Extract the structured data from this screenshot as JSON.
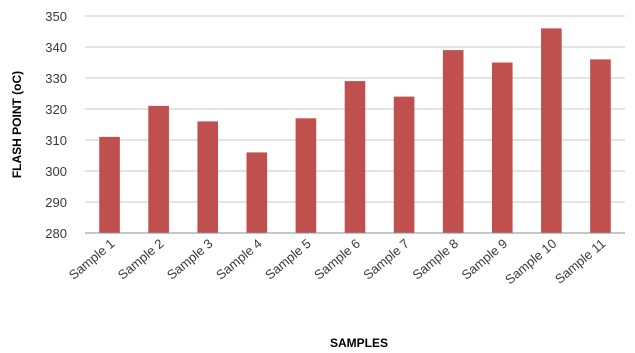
{
  "chart_data": {
    "type": "bar",
    "title": "",
    "xlabel": "SAMPLES",
    "ylabel": "FLASH POINT (oC)",
    "categories": [
      "Sample 1",
      "Sample 2",
      "Sample 3",
      "Sample 4",
      "Sample 5",
      "Sample 6",
      "Sample 7",
      "Sample 8",
      "Sample 9",
      "Sample 10",
      "Sample 11"
    ],
    "series": [
      {
        "values": [
          311,
          321,
          316,
          306,
          317,
          329,
          324,
          339,
          335,
          346,
          336
        ]
      }
    ],
    "ylim": [
      280,
      350
    ],
    "yticks": [
      280,
      290,
      300,
      310,
      320,
      330,
      340,
      350
    ],
    "grid": true,
    "legend": "none",
    "colors": {
      "bar": "#c0504d",
      "grid": "#c9c9c9"
    }
  }
}
